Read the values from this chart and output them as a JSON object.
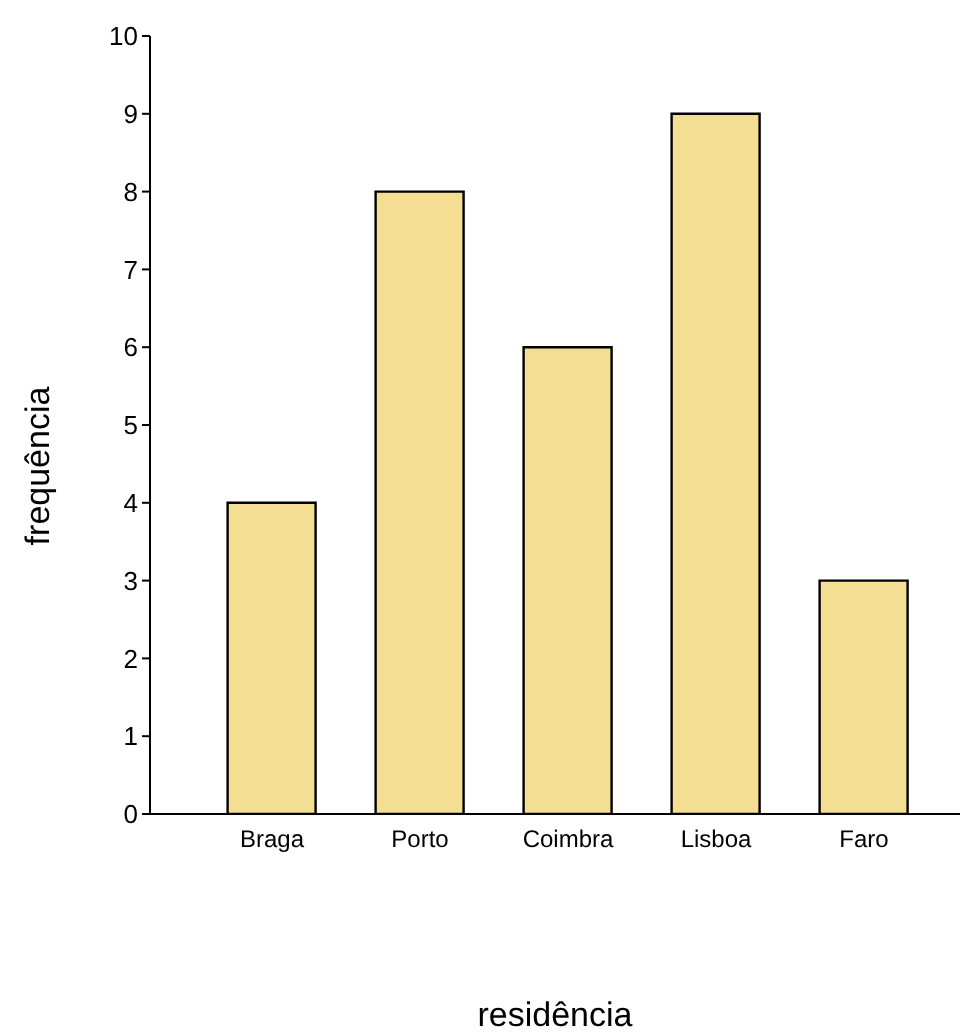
{
  "chart_data": {
    "type": "bar",
    "xlabel": "residência",
    "ylabel": "frequência",
    "categories": [
      "Braga",
      "Porto",
      "Coimbra",
      "Lisboa",
      "Faro"
    ],
    "values": [
      4,
      8,
      6,
      9,
      3
    ],
    "color": "#f4de94",
    "ylim": [
      0,
      10
    ],
    "yticks": [
      0,
      1,
      2,
      3,
      4,
      5,
      6,
      7,
      8,
      9,
      10
    ],
    "grid": false,
    "legend": false
  }
}
